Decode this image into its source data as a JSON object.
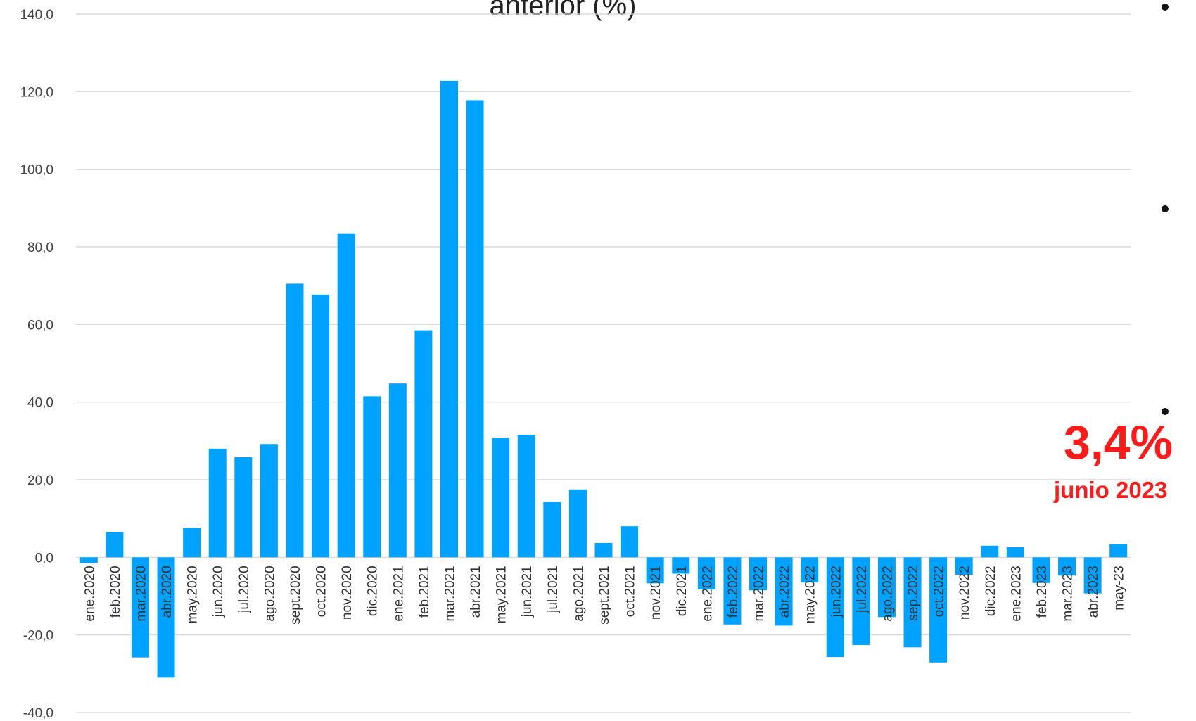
{
  "chart_data": {
    "type": "bar",
    "title": "anterior (%)",
    "ylim": [
      -40,
      140
    ],
    "yticks": [
      "140,0",
      "120,0",
      "100,0",
      "80,0",
      "60,0",
      "40,0",
      "20,0",
      "0,0",
      "-20,0",
      "-40,0"
    ],
    "ytick_values": [
      140,
      120,
      100,
      80,
      60,
      40,
      20,
      0,
      -20,
      -40
    ],
    "grid": true,
    "bar_color": "#00a2ff",
    "categories": [
      "ene.2020",
      "feb.2020",
      "mar.2020",
      "abr.2020",
      "may.2020",
      "jun.2020",
      "jul.2020",
      "ago.2020",
      "sept.2020",
      "oct.2020",
      "nov.2020",
      "dic.2020",
      "ene.2021",
      "feb.2021",
      "mar.2021",
      "abr.2021",
      "may.2021",
      "jun.2021",
      "jul.2021",
      "ago.2021",
      "sept.2021",
      "oct.2021",
      "nov.2021",
      "dic.2021",
      "ene.2022",
      "feb.2022",
      "mar.2022",
      "abr.2022",
      "may.2022",
      "jun.2022",
      "jul.2022",
      "ago.2022",
      "sep.2022",
      "oct.2022",
      "nov.2022",
      "dic.2022",
      "ene.2023",
      "feb.2023",
      "mar.2023",
      "abr.2023",
      "may-23"
    ],
    "values": [
      -1.5,
      6.5,
      -25.8,
      -31.0,
      7.6,
      28.0,
      25.8,
      29.2,
      70.5,
      67.7,
      83.5,
      41.5,
      44.8,
      58.5,
      122.8,
      117.8,
      30.8,
      31.6,
      14.3,
      17.5,
      3.7,
      8.0,
      -6.7,
      -4.2,
      -8.3,
      -17.3,
      -8.5,
      -17.6,
      -6.5,
      -25.7,
      -22.6,
      -15.4,
      -23.2,
      -27.1,
      -4.5,
      3.0,
      2.6,
      -6.6,
      -4.7,
      -9.3,
      3.4
    ]
  },
  "annotation": {
    "value": "3,4%",
    "subtitle": "junio 2023",
    "color": "#ff1a1a"
  }
}
